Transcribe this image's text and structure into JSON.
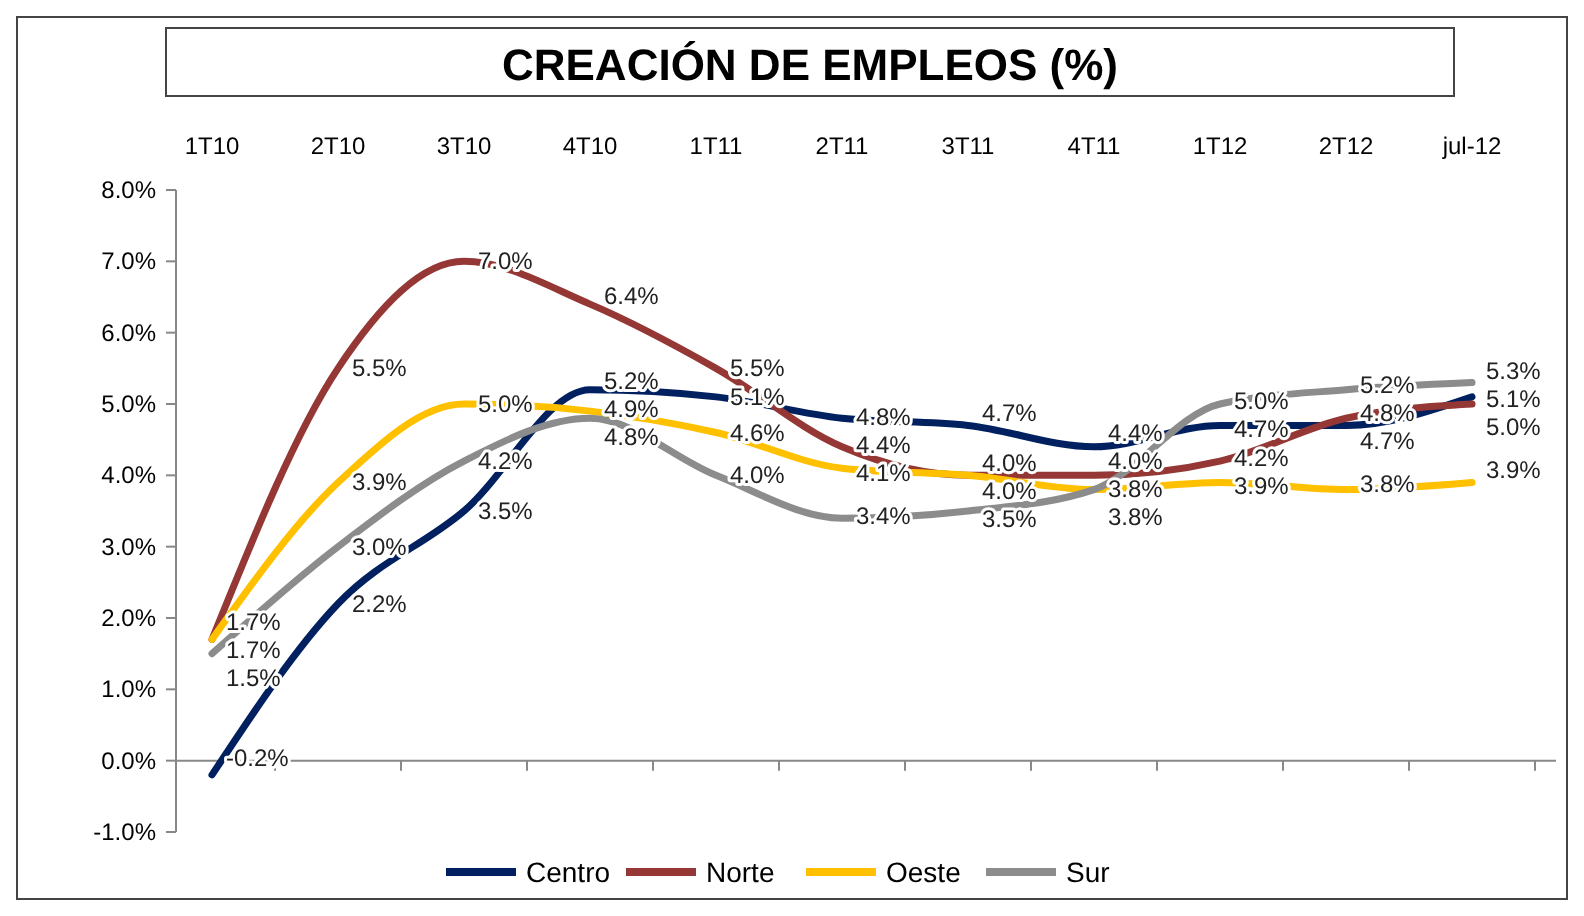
{
  "chart_data": {
    "type": "line",
    "title": "CREACIÓN DE EMPLEOS (%)",
    "categories": [
      "1T10",
      "2T10",
      "3T10",
      "4T10",
      "1T11",
      "2T11",
      "3T11",
      "4T11",
      "1T12",
      "2T12",
      "jul-12"
    ],
    "series": [
      {
        "name": "Centro",
        "color": "#002060",
        "values": [
          -0.2,
          2.2,
          3.5,
          5.2,
          5.1,
          4.8,
          4.7,
          4.4,
          4.7,
          4.7,
          5.1
        ],
        "value_labels": [
          "-0.2%",
          "2.2%",
          "3.5%",
          "5.2%",
          "5.1%",
          "4.8%",
          "4.7%",
          "4.4%",
          "4.7%",
          "4.7%",
          "5.1%"
        ]
      },
      {
        "name": "Norte",
        "color": "#953735",
        "values": [
          1.7,
          5.5,
          7.0,
          6.4,
          5.5,
          4.4,
          4.0,
          4.0,
          4.2,
          4.8,
          5.0
        ],
        "value_labels": [
          "1.7%",
          "5.5%",
          "7.0%",
          "6.4%",
          "5.5%",
          "4.4%",
          "4.0%",
          "4.0%",
          "4.2%",
          "4.8%",
          "5.0%"
        ]
      },
      {
        "name": "Oeste",
        "color": "#ffc000",
        "values": [
          1.7,
          3.9,
          5.0,
          4.9,
          4.6,
          4.1,
          4.0,
          3.8,
          3.9,
          3.8,
          3.9
        ],
        "value_labels": [
          "1.7%",
          "3.9%",
          "5.0%",
          "4.9%",
          "4.6%",
          "4.1%",
          "4.0%",
          "3.8%",
          "3.9%",
          "3.8%",
          "3.9%"
        ]
      },
      {
        "name": "Sur",
        "color": "#8c8c8c",
        "values": [
          1.5,
          3.0,
          4.2,
          4.8,
          4.0,
          3.4,
          3.5,
          3.8,
          5.0,
          5.2,
          5.3
        ],
        "value_labels": [
          "1.5%",
          "3.0%",
          "4.2%",
          "4.8%",
          "4.0%",
          "3.4%",
          "3.5%",
          "3.8%",
          "5.0%",
          "5.2%",
          "5.3%"
        ]
      }
    ],
    "ylim": [
      -1,
      8
    ],
    "yticks": [
      {
        "value": -1,
        "label": "-1.0%"
      },
      {
        "value": 0,
        "label": "0.0%"
      },
      {
        "value": 1,
        "label": "1.0%"
      },
      {
        "value": 2,
        "label": "2.0%"
      },
      {
        "value": 3,
        "label": "3.0%"
      },
      {
        "value": 4,
        "label": "4.0%"
      },
      {
        "value": 5,
        "label": "5.0%"
      },
      {
        "value": 6,
        "label": "6.0%"
      },
      {
        "value": 7,
        "label": "7.0%"
      },
      {
        "value": 8,
        "label": "8.0%"
      }
    ],
    "legend": "bottom",
    "marker": "none",
    "line_style": "solid"
  }
}
